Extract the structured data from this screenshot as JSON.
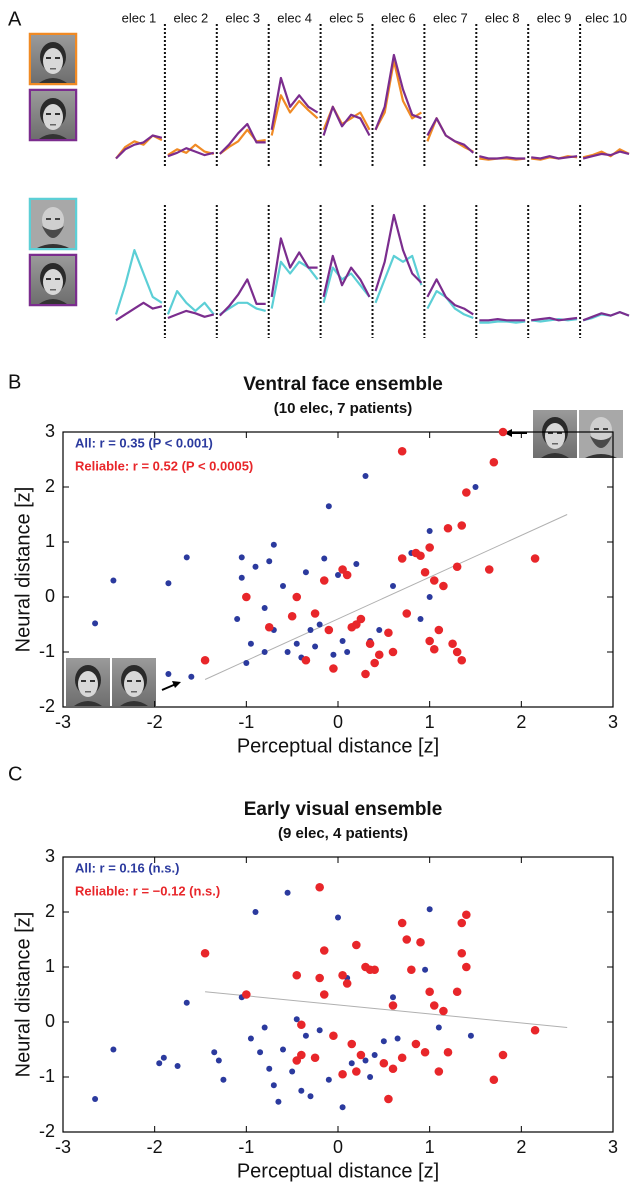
{
  "chart_data": [
    {
      "type": "line",
      "panel": "A",
      "ylim": [
        0,
        10
      ],
      "categories": [
        "elec 1",
        "elec 2",
        "elec 3",
        "elec 4",
        "elec 5",
        "elec 6",
        "elec 7",
        "elec 8",
        "elec 9",
        "elec 10"
      ],
      "series": [
        {
          "color": "#f08a24",
          "values": [
            [
              1,
              2,
              2.5,
              2.2,
              3,
              2.6
            ],
            [
              1.3,
              1.8,
              1.5,
              2.2,
              1.6,
              1.4
            ],
            [
              1.4,
              2,
              2.5,
              3.5,
              2.5,
              2.6
            ],
            [
              3,
              6.5,
              5,
              6,
              5.2,
              4.5
            ],
            [
              3.5,
              5.5,
              4,
              4.5,
              5,
              3.5
            ],
            [
              3.5,
              5,
              9.5,
              6,
              4.5,
              5
            ],
            [
              2.5,
              4.5,
              3,
              2.5,
              2,
              1.6
            ],
            [
              1,
              0.9,
              1,
              1,
              0.9,
              1
            ],
            [
              1,
              0.9,
              1.1,
              1,
              1.2,
              1.1
            ],
            [
              1.1,
              1.3,
              1.6,
              1.2,
              1.8,
              1.4
            ]
          ]
        },
        {
          "color": "#7b2d8e",
          "values": [
            [
              1,
              1.8,
              2.2,
              2.4,
              3,
              2.8
            ],
            [
              1.2,
              1.5,
              1.9,
              1.6,
              1.3,
              1.5
            ],
            [
              1.4,
              2.2,
              3.2,
              4,
              2.4,
              2.4
            ],
            [
              3.5,
              8,
              5.5,
              6.5,
              5.5,
              5
            ],
            [
              3,
              5.5,
              3.8,
              4.8,
              4.5,
              3
            ],
            [
              3.5,
              5.5,
              10,
              7,
              4.8,
              4.5
            ],
            [
              3,
              4.5,
              3,
              2.5,
              2.2,
              1.5
            ],
            [
              1.2,
              1,
              1,
              1.1,
              1,
              1
            ],
            [
              1.1,
              1,
              1.2,
              1,
              1.1,
              1.2
            ],
            [
              1,
              1.2,
              1.4,
              1.3,
              1.6,
              1.4
            ]
          ]
        }
      ]
    },
    {
      "type": "line",
      "ylim": [
        0,
        10
      ],
      "series": [
        {
          "color": "#5ccfd6",
          "values": [
            [
              1.5,
              4,
              7,
              5,
              3,
              2.5
            ],
            [
              1.5,
              3.5,
              2.5,
              1.8,
              2.5,
              1.5
            ],
            [
              1.5,
              2,
              2.5,
              2.5,
              2,
              1.8
            ],
            [
              2,
              6,
              5,
              6,
              5.5,
              4.5
            ],
            [
              2.5,
              5.5,
              4.5,
              5,
              4,
              3
            ],
            [
              2.5,
              4.5,
              6.5,
              6,
              6.5,
              4
            ],
            [
              2,
              3.5,
              3,
              2,
              1.5,
              1.2
            ],
            [
              0.8,
              0.8,
              0.9,
              0.9,
              0.8,
              0.9
            ],
            [
              1,
              0.9,
              1,
              1.1,
              1,
              1.1
            ],
            [
              1,
              1.2,
              1.5,
              1.4,
              1.7,
              1.4
            ]
          ]
        },
        {
          "color": "#7b2d8e",
          "values": [
            [
              1,
              1.5,
              2,
              2.5,
              2,
              2.2
            ],
            [
              1.2,
              1.5,
              1.8,
              1.6,
              1.3,
              1.5
            ],
            [
              1.4,
              2.2,
              3.2,
              4.5,
              2.4,
              2.4
            ],
            [
              3,
              8,
              5.5,
              6.8,
              5.5,
              5.5
            ],
            [
              3,
              6.5,
              4,
              5.5,
              4.5,
              3
            ],
            [
              3.5,
              6,
              10,
              7,
              5,
              4.2
            ],
            [
              3,
              4.5,
              3,
              2.3,
              2,
              1.5
            ],
            [
              1,
              1,
              1.1,
              1,
              1,
              1
            ],
            [
              1,
              1.1,
              1.2,
              1,
              1.1,
              1.2
            ],
            [
              1,
              1.3,
              1.6,
              1.4,
              1.7,
              1.4
            ]
          ]
        }
      ]
    },
    {
      "type": "scatter",
      "panel": "B",
      "title": "Ventral face ensemble",
      "subtitle": "(10 elec, 7 patients)",
      "x_label": "Perceptual distance [z]",
      "y_label": "Neural distance [z]",
      "xlim": [
        -3,
        3
      ],
      "ylim": [
        -2,
        3
      ],
      "xticks": [
        -3,
        -2,
        -1,
        0,
        1,
        2,
        3
      ],
      "yticks": [
        -2,
        -1,
        0,
        1,
        2,
        3
      ],
      "series": [
        {
          "name": "All: r = 0.35 (P < 0.001)",
          "color": "#2b3a9e",
          "x": [
            -2.65,
            -2.45,
            -1.85,
            -1.65,
            -1.85,
            -1.6,
            -1.1,
            -1.05,
            -1.05,
            -0.9,
            -0.8,
            -0.8,
            -0.75,
            -0.7,
            -0.7,
            -0.6,
            -0.55,
            -0.45,
            -0.4,
            -0.35,
            -0.3,
            -0.25,
            -0.2,
            -0.15,
            -0.1,
            -0.05,
            0,
            0.05,
            0.1,
            0.15,
            0.3,
            0.35,
            0.45,
            0.6,
            0.8,
            0.9,
            1.0,
            1.05,
            1.5,
            1.0,
            -1.0,
            -0.95,
            0.2
          ],
          "values": [
            -0.48,
            0.3,
            0.25,
            0.72,
            -1.4,
            -1.45,
            -0.4,
            0.35,
            0.72,
            0.55,
            -0.2,
            -1.0,
            0.65,
            0.95,
            -0.6,
            0.2,
            -1.0,
            -0.85,
            -1.1,
            0.45,
            -0.6,
            -0.9,
            -0.5,
            0.7,
            1.65,
            -1.05,
            0.4,
            -0.8,
            -1.0,
            -0.55,
            2.2,
            -0.8,
            -0.6,
            0.2,
            0.8,
            -0.4,
            1.2,
            -0.95,
            2.0,
            0.0,
            -1.2,
            -0.85,
            0.6
          ]
        },
        {
          "name": "Reliable: r = 0.52 (P < 0.0005)",
          "color": "#e8262a",
          "x": [
            -1.45,
            -1.0,
            -0.75,
            -0.45,
            -0.5,
            -0.35,
            -0.25,
            -0.15,
            -0.1,
            -0.05,
            0.05,
            0.1,
            0.15,
            0.2,
            0.25,
            0.3,
            0.35,
            0.4,
            0.45,
            0.55,
            0.6,
            0.7,
            0.7,
            0.75,
            0.85,
            0.9,
            0.95,
            1.0,
            1.05,
            1.0,
            1.05,
            1.1,
            1.15,
            1.2,
            1.25,
            1.3,
            1.3,
            1.35,
            1.35,
            1.4,
            1.65,
            1.7,
            1.8,
            2.15
          ],
          "values": [
            -1.15,
            0.0,
            -0.55,
            0.0,
            -0.35,
            -1.15,
            -0.3,
            0.3,
            -0.6,
            -1.3,
            0.5,
            0.4,
            -0.55,
            -0.5,
            -0.4,
            -1.4,
            -0.85,
            -1.2,
            -1.05,
            -0.65,
            -1.0,
            0.7,
            2.65,
            -0.3,
            0.8,
            0.75,
            0.45,
            -0.8,
            -0.95,
            0.9,
            0.3,
            -0.6,
            0.2,
            1.25,
            -0.85,
            -1.0,
            0.55,
            -1.15,
            1.3,
            1.9,
            0.5,
            2.45,
            3.0,
            0.7
          ]
        }
      ],
      "fit": {
        "color": "#b0b0b0",
        "x": [
          -1.45,
          2.5
        ],
        "values": [
          -1.5,
          1.5
        ]
      }
    },
    {
      "type": "scatter",
      "panel": "C",
      "title": "Early visual ensemble",
      "subtitle": "(9 elec, 4 patients)",
      "x_label": "Perceptual distance [z]",
      "y_label": "Neural distance [z]",
      "xlim": [
        -3,
        3
      ],
      "ylim": [
        -2,
        3
      ],
      "xticks": [
        -3,
        -2,
        -1,
        0,
        1,
        2,
        3
      ],
      "yticks": [
        -2,
        -1,
        0,
        1,
        2,
        3
      ],
      "series": [
        {
          "name": "All: r = 0.16 (n.s.)",
          "color": "#2b3a9e",
          "x": [
            -2.65,
            -2.45,
            -1.95,
            -1.9,
            -1.75,
            -1.65,
            -1.35,
            -1.3,
            -1.25,
            -1.05,
            -1.0,
            -0.95,
            -0.9,
            -0.85,
            -0.8,
            -0.75,
            -0.7,
            -0.65,
            -0.6,
            -0.55,
            -0.5,
            -0.45,
            -0.4,
            -0.35,
            -0.3,
            -0.2,
            -0.1,
            0.0,
            0.05,
            0.1,
            0.15,
            0.3,
            0.35,
            0.4,
            0.6,
            0.65,
            0.95,
            1.0,
            1.1,
            1.45,
            0.5
          ],
          "values": [
            -1.4,
            -0.5,
            -0.75,
            -0.65,
            -0.8,
            0.35,
            -0.55,
            -0.7,
            -1.05,
            0.45,
            0.5,
            -0.3,
            2.0,
            -0.55,
            -0.1,
            -0.85,
            -1.15,
            -1.45,
            -0.5,
            2.35,
            -0.9,
            0.05,
            -1.25,
            -0.25,
            -1.35,
            -0.15,
            -1.05,
            1.9,
            -1.55,
            0.8,
            -0.75,
            -0.7,
            -1.0,
            -0.6,
            0.45,
            -0.3,
            0.95,
            2.05,
            -0.1,
            -0.25,
            -0.35
          ]
        },
        {
          "name": "Reliable: r = −0.12 (n.s.)",
          "color": "#e8262a",
          "x": [
            -1.45,
            -1.0,
            -0.45,
            -0.4,
            -0.45,
            -0.25,
            -0.2,
            -0.15,
            -0.15,
            -0.2,
            -0.05,
            0.05,
            0.1,
            0.05,
            0.15,
            0.2,
            0.2,
            0.25,
            0.3,
            0.35,
            0.4,
            0.5,
            0.55,
            0.6,
            0.6,
            0.7,
            0.7,
            0.75,
            0.8,
            0.85,
            0.9,
            0.95,
            1.0,
            1.05,
            1.1,
            1.15,
            1.2,
            1.3,
            1.35,
            1.35,
            1.4,
            1.4,
            1.7,
            1.8,
            2.15,
            -0.4
          ],
          "values": [
            1.25,
            0.5,
            0.85,
            -0.6,
            -0.7,
            -0.65,
            2.45,
            1.3,
            0.5,
            0.8,
            -0.25,
            0.85,
            0.7,
            -0.95,
            -0.4,
            1.4,
            -0.9,
            -0.6,
            1.0,
            0.95,
            0.95,
            -0.75,
            -1.4,
            0.3,
            -0.85,
            1.8,
            -0.65,
            1.5,
            0.95,
            -0.4,
            1.45,
            -0.55,
            0.55,
            0.3,
            -0.9,
            0.2,
            -0.55,
            0.55,
            1.25,
            1.8,
            1.0,
            1.95,
            -1.05,
            -0.6,
            -0.15,
            -0.05
          ]
        }
      ],
      "fit": {
        "color": "#b0b0b0",
        "x": [
          -1.45,
          2.5
        ],
        "values": [
          0.55,
          -0.1
        ]
      }
    }
  ]
}
